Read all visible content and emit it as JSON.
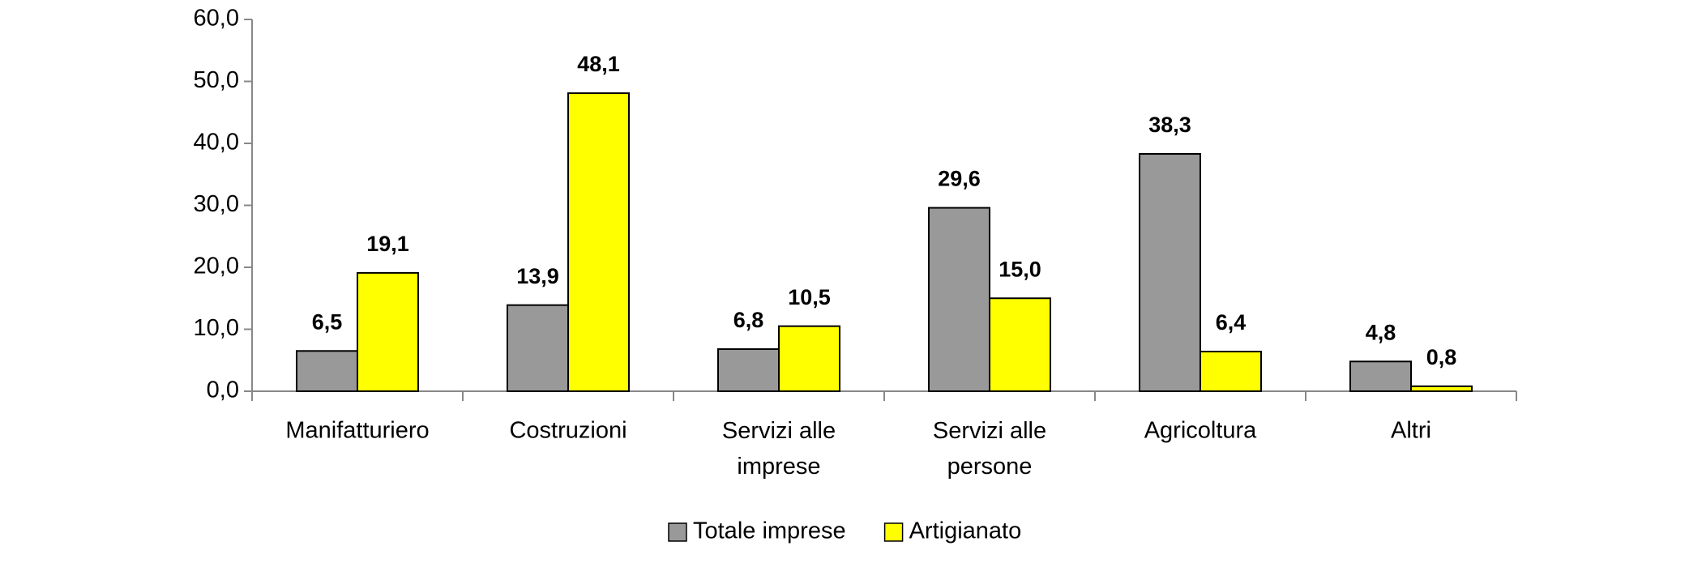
{
  "chart_data": {
    "type": "bar",
    "categories": [
      "Manifatturiero",
      "Costruzioni",
      "Servizi alle imprese",
      "Servizi alle persone",
      "Agricoltura",
      "Altri"
    ],
    "series": [
      {
        "name": "Totale imprese",
        "color": "#999999",
        "values": [
          6.5,
          13.9,
          6.8,
          29.6,
          38.3,
          4.8
        ],
        "value_labels": [
          "6,5",
          "13,9",
          "6,8",
          "29,6",
          "38,3",
          "4,8"
        ]
      },
      {
        "name": "Artigianato",
        "color": "#ffff00",
        "values": [
          19.1,
          48.1,
          10.5,
          15.0,
          6.4,
          0.8
        ],
        "value_labels": [
          "19,1",
          "48,1",
          "10,5",
          "15,0",
          "6,4",
          "0,8"
        ]
      }
    ],
    "ylim": [
      0,
      60
    ],
    "yticks": [
      {
        "value": 0,
        "label": "0,0"
      },
      {
        "value": 10,
        "label": "10,0"
      },
      {
        "value": 20,
        "label": "20,0"
      },
      {
        "value": 30,
        "label": "30,0"
      },
      {
        "value": 40,
        "label": "40,0"
      },
      {
        "value": 50,
        "label": "50,0"
      },
      {
        "value": 60,
        "label": "60,0"
      }
    ],
    "grid": false,
    "legend": "bottom"
  }
}
